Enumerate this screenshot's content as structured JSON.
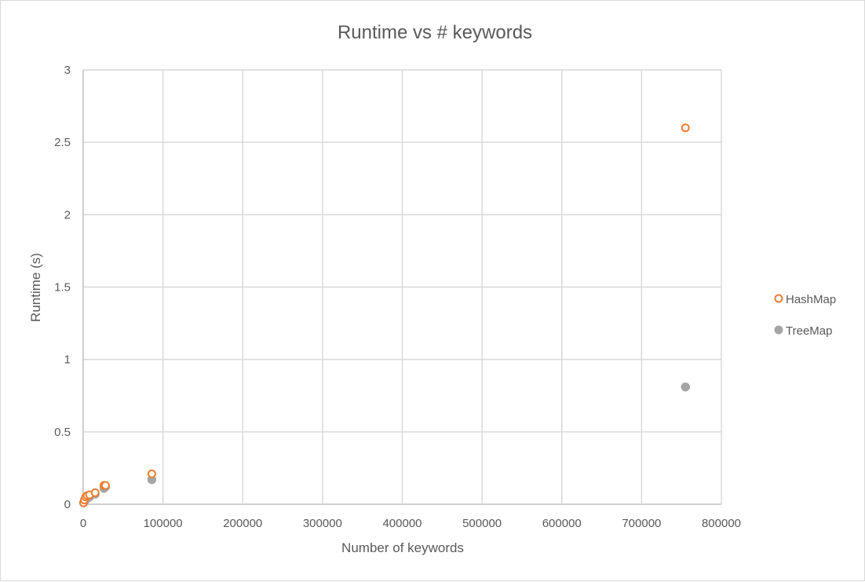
{
  "chart_data": {
    "type": "scatter",
    "title": "Runtime vs # keywords",
    "xlabel": "Number of keywords",
    "ylabel": "Runtime (s)",
    "xlim": [
      0,
      800000
    ],
    "ylim": [
      0,
      3
    ],
    "x_ticks": [
      "0",
      "100000",
      "200000",
      "300000",
      "400000",
      "500000",
      "600000",
      "700000",
      "800000"
    ],
    "y_ticks": [
      "0",
      "0.5",
      "1",
      "1.5",
      "2",
      "2.5",
      "3"
    ],
    "grid": true,
    "legend_position": "right",
    "series": [
      {
        "name": "HashMap",
        "color": "#ed7d31",
        "marker": "open-circle",
        "points": [
          {
            "x": 500,
            "y": 0.01
          },
          {
            "x": 1500,
            "y": 0.03
          },
          {
            "x": 3000,
            "y": 0.05
          },
          {
            "x": 5000,
            "y": 0.06
          },
          {
            "x": 8000,
            "y": 0.065
          },
          {
            "x": 15000,
            "y": 0.08
          },
          {
            "x": 26000,
            "y": 0.13
          },
          {
            "x": 28000,
            "y": 0.13
          },
          {
            "x": 86000,
            "y": 0.21
          },
          {
            "x": 755000,
            "y": 2.6
          }
        ]
      },
      {
        "name": "TreeMap",
        "color": "#a5a5a5",
        "marker": "filled-circle",
        "points": [
          {
            "x": 500,
            "y": 0.01
          },
          {
            "x": 1500,
            "y": 0.02
          },
          {
            "x": 3000,
            "y": 0.03
          },
          {
            "x": 5000,
            "y": 0.04
          },
          {
            "x": 8000,
            "y": 0.05
          },
          {
            "x": 15000,
            "y": 0.07
          },
          {
            "x": 26000,
            "y": 0.11
          },
          {
            "x": 28000,
            "y": 0.12
          },
          {
            "x": 86000,
            "y": 0.17
          },
          {
            "x": 755000,
            "y": 0.81
          }
        ]
      }
    ]
  }
}
